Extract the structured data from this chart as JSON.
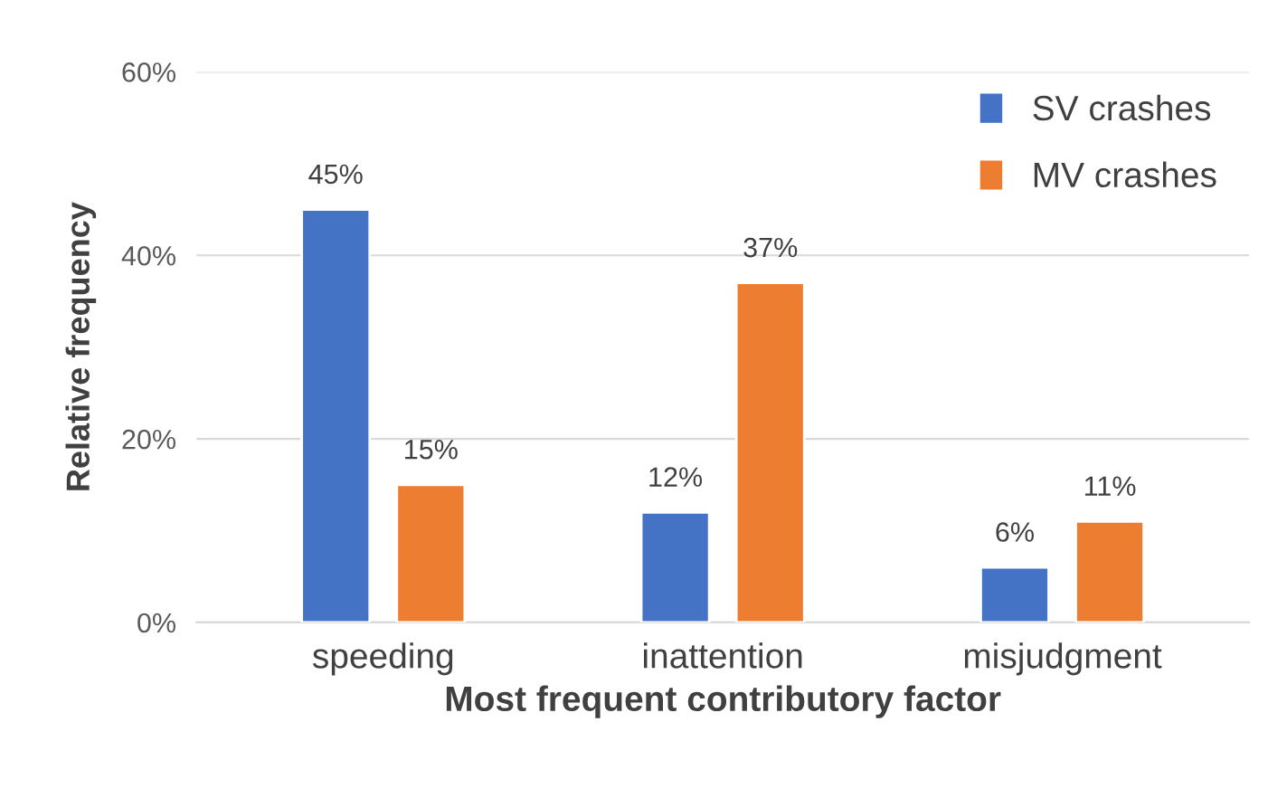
{
  "chart_data": {
    "type": "bar",
    "xlabel": "Most frequent contributory factor",
    "ylabel": "Relative frequency",
    "categories": [
      "speeding",
      "inattention",
      "misjudgment"
    ],
    "series": [
      {
        "name": "SV crashes",
        "color": "#4472c4",
        "values": [
          45,
          12,
          6
        ],
        "value_labels": [
          "45%",
          "12%",
          "6%"
        ]
      },
      {
        "name": "MV crashes",
        "color": "#ed7d31",
        "values": [
          15,
          37,
          11
        ],
        "value_labels": [
          "15%",
          "37%",
          "11%"
        ]
      }
    ],
    "ylim": [
      0,
      60
    ],
    "yticks": [
      {
        "value": 0,
        "label": "0%"
      },
      {
        "value": 20,
        "label": "20%"
      },
      {
        "value": 40,
        "label": "40%"
      },
      {
        "value": 60,
        "label": "60%"
      }
    ],
    "grid": "y",
    "legend": "top right"
  }
}
